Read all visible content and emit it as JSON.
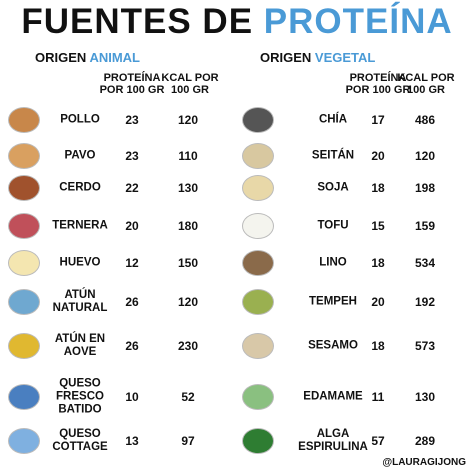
{
  "header": {
    "title_black": "FUENTES DE",
    "title_blue": "PROTEÍNA"
  },
  "animal": {
    "label": "ORIGEN",
    "label_blue": "ANIMAL",
    "columns": [
      [
        "PROTEÍNA",
        "POR 100 GR"
      ],
      [
        "KCAL POR",
        "100 GR"
      ]
    ],
    "rows": [
      {
        "name": [
          "POLLO"
        ],
        "protein": 23,
        "kcal": 120
      },
      {
        "name": [
          "PAVO"
        ],
        "protein": 23,
        "kcal": 110
      },
      {
        "name": [
          "CERDO"
        ],
        "protein": 22,
        "kcal": 130
      },
      {
        "name": [
          "TERNERA"
        ],
        "protein": 20,
        "kcal": 180
      },
      {
        "name": [
          "HUEVO"
        ],
        "protein": 12,
        "kcal": 150
      },
      {
        "name": [
          "ATÚN",
          "NATURAL"
        ],
        "protein": 26,
        "kcal": 120
      },
      {
        "name": [
          "ATÚN EN",
          "AOVE"
        ],
        "protein": 26,
        "kcal": 230
      },
      {
        "name": [
          "QUESO",
          "FRESCO",
          "BATIDO"
        ],
        "protein": 10,
        "kcal": 52
      },
      {
        "name": [
          "QUESO",
          "COTTAGE"
        ],
        "protein": 13,
        "kcal": 97
      }
    ]
  },
  "vegetal": {
    "label": "ORIGEN",
    "label_blue": "VEGETAL",
    "columns": [
      [
        "PROTEÍNA",
        "POR 100 GR"
      ],
      [
        "KCAL POR",
        "100 GR"
      ]
    ],
    "rows": [
      {
        "name": [
          "CHÍA"
        ],
        "protein": 17,
        "kcal": 486
      },
      {
        "name": [
          "SEITÁN"
        ],
        "protein": 20,
        "kcal": 120
      },
      {
        "name": [
          "SOJA"
        ],
        "protein": 18,
        "kcal": 198
      },
      {
        "name": [
          "TOFU"
        ],
        "protein": 15,
        "kcal": 159
      },
      {
        "name": [
          "LINO"
        ],
        "protein": 18,
        "kcal": 534
      },
      {
        "name": [
          "TEMPEH"
        ],
        "protein": 20,
        "kcal": 192
      },
      {
        "name": [
          "SESAMO"
        ],
        "protein": 18,
        "kcal": 573
      },
      {
        "name": [
          "EDAMAME"
        ],
        "protein": 11,
        "kcal": 130
      },
      {
        "name": [
          "ALGA",
          "ESPIRULINA"
        ],
        "protein": 57,
        "kcal": 289
      }
    ]
  },
  "footer": "@LAURAGIJONG"
}
